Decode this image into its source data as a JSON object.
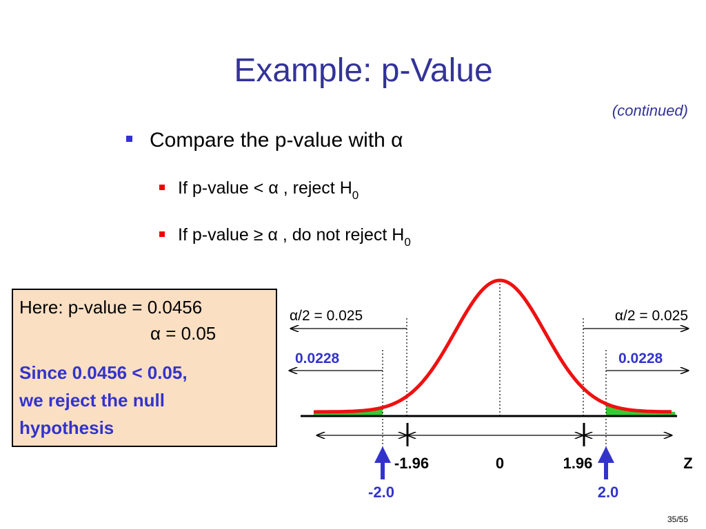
{
  "header": {
    "title": "Example: p-Value",
    "subtitle": "(continued)"
  },
  "bullets": [
    {
      "text": "Compare the p-value with  α",
      "items": [
        {
          "text": "If  p-value  <   α , reject H",
          "sub": "0"
        },
        {
          "text": "If  p-value  ≥   α , do not reject H",
          "sub": "0"
        }
      ]
    }
  ],
  "box": {
    "line1": "Here:  p-value = 0.0456",
    "line2": "α = 0.05",
    "conclusion": [
      "Since 0.0456 < 0.05,",
      "we reject the null",
      "hypothesis"
    ]
  },
  "diagram": {
    "alpha_left": "α/2 = 0.025",
    "alpha_right": "α/2 = 0.025",
    "p_left": "0.0228",
    "p_right": "0.0228",
    "axis": [
      "-1.96",
      "0",
      "1.96"
    ],
    "axis_name": "Z",
    "stat_left": "-2.0",
    "stat_right": "2.0"
  },
  "footer": {
    "page": "35/55"
  }
}
